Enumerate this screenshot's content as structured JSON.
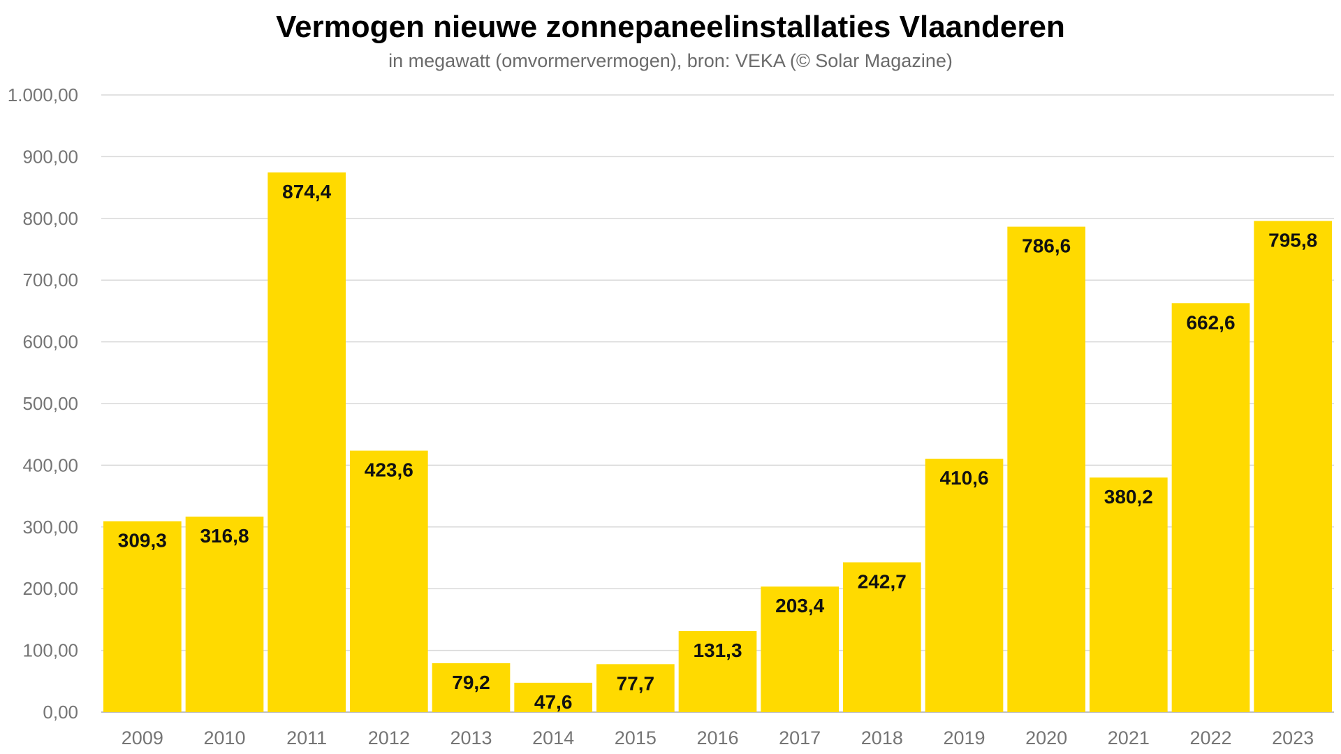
{
  "chart_data": {
    "type": "bar",
    "title": "Vermogen nieuwe zonnepaneelinstallaties Vlaanderen",
    "subtitle": "in megawatt (omvormervermogen), bron: VEKA (© Solar Magazine)",
    "xlabel": "",
    "ylabel": "",
    "categories": [
      "2009",
      "2010",
      "2011",
      "2012",
      "2013",
      "2014",
      "2015",
      "2016",
      "2017",
      "2018",
      "2019",
      "2020",
      "2021",
      "2022",
      "2023"
    ],
    "values": [
      309.3,
      316.8,
      874.4,
      423.6,
      79.2,
      47.6,
      77.7,
      131.3,
      203.4,
      242.7,
      410.6,
      786.6,
      380.2,
      662.6,
      795.8
    ],
    "value_labels": [
      "309,3",
      "316,8",
      "874,4",
      "423,6",
      "79,2",
      "47,6",
      "77,7",
      "131,3",
      "203,4",
      "242,7",
      "410,6",
      "786,6",
      "380,2",
      "662,6",
      "795,8"
    ],
    "ylim": [
      0,
      1000
    ],
    "yticks": [
      0,
      100,
      200,
      300,
      400,
      500,
      600,
      700,
      800,
      900,
      1000
    ],
    "ytick_labels": [
      "0,00",
      "100,00",
      "200,00",
      "300,00",
      "400,00",
      "500,00",
      "600,00",
      "700,00",
      "800,00",
      "900,00",
      "1.000,00"
    ],
    "grid": true,
    "legend": "none",
    "colors": {
      "bar": "#FFDA00",
      "grid": "#d9d9d9",
      "tick_text": "#757575",
      "label_text": "#111111"
    }
  }
}
